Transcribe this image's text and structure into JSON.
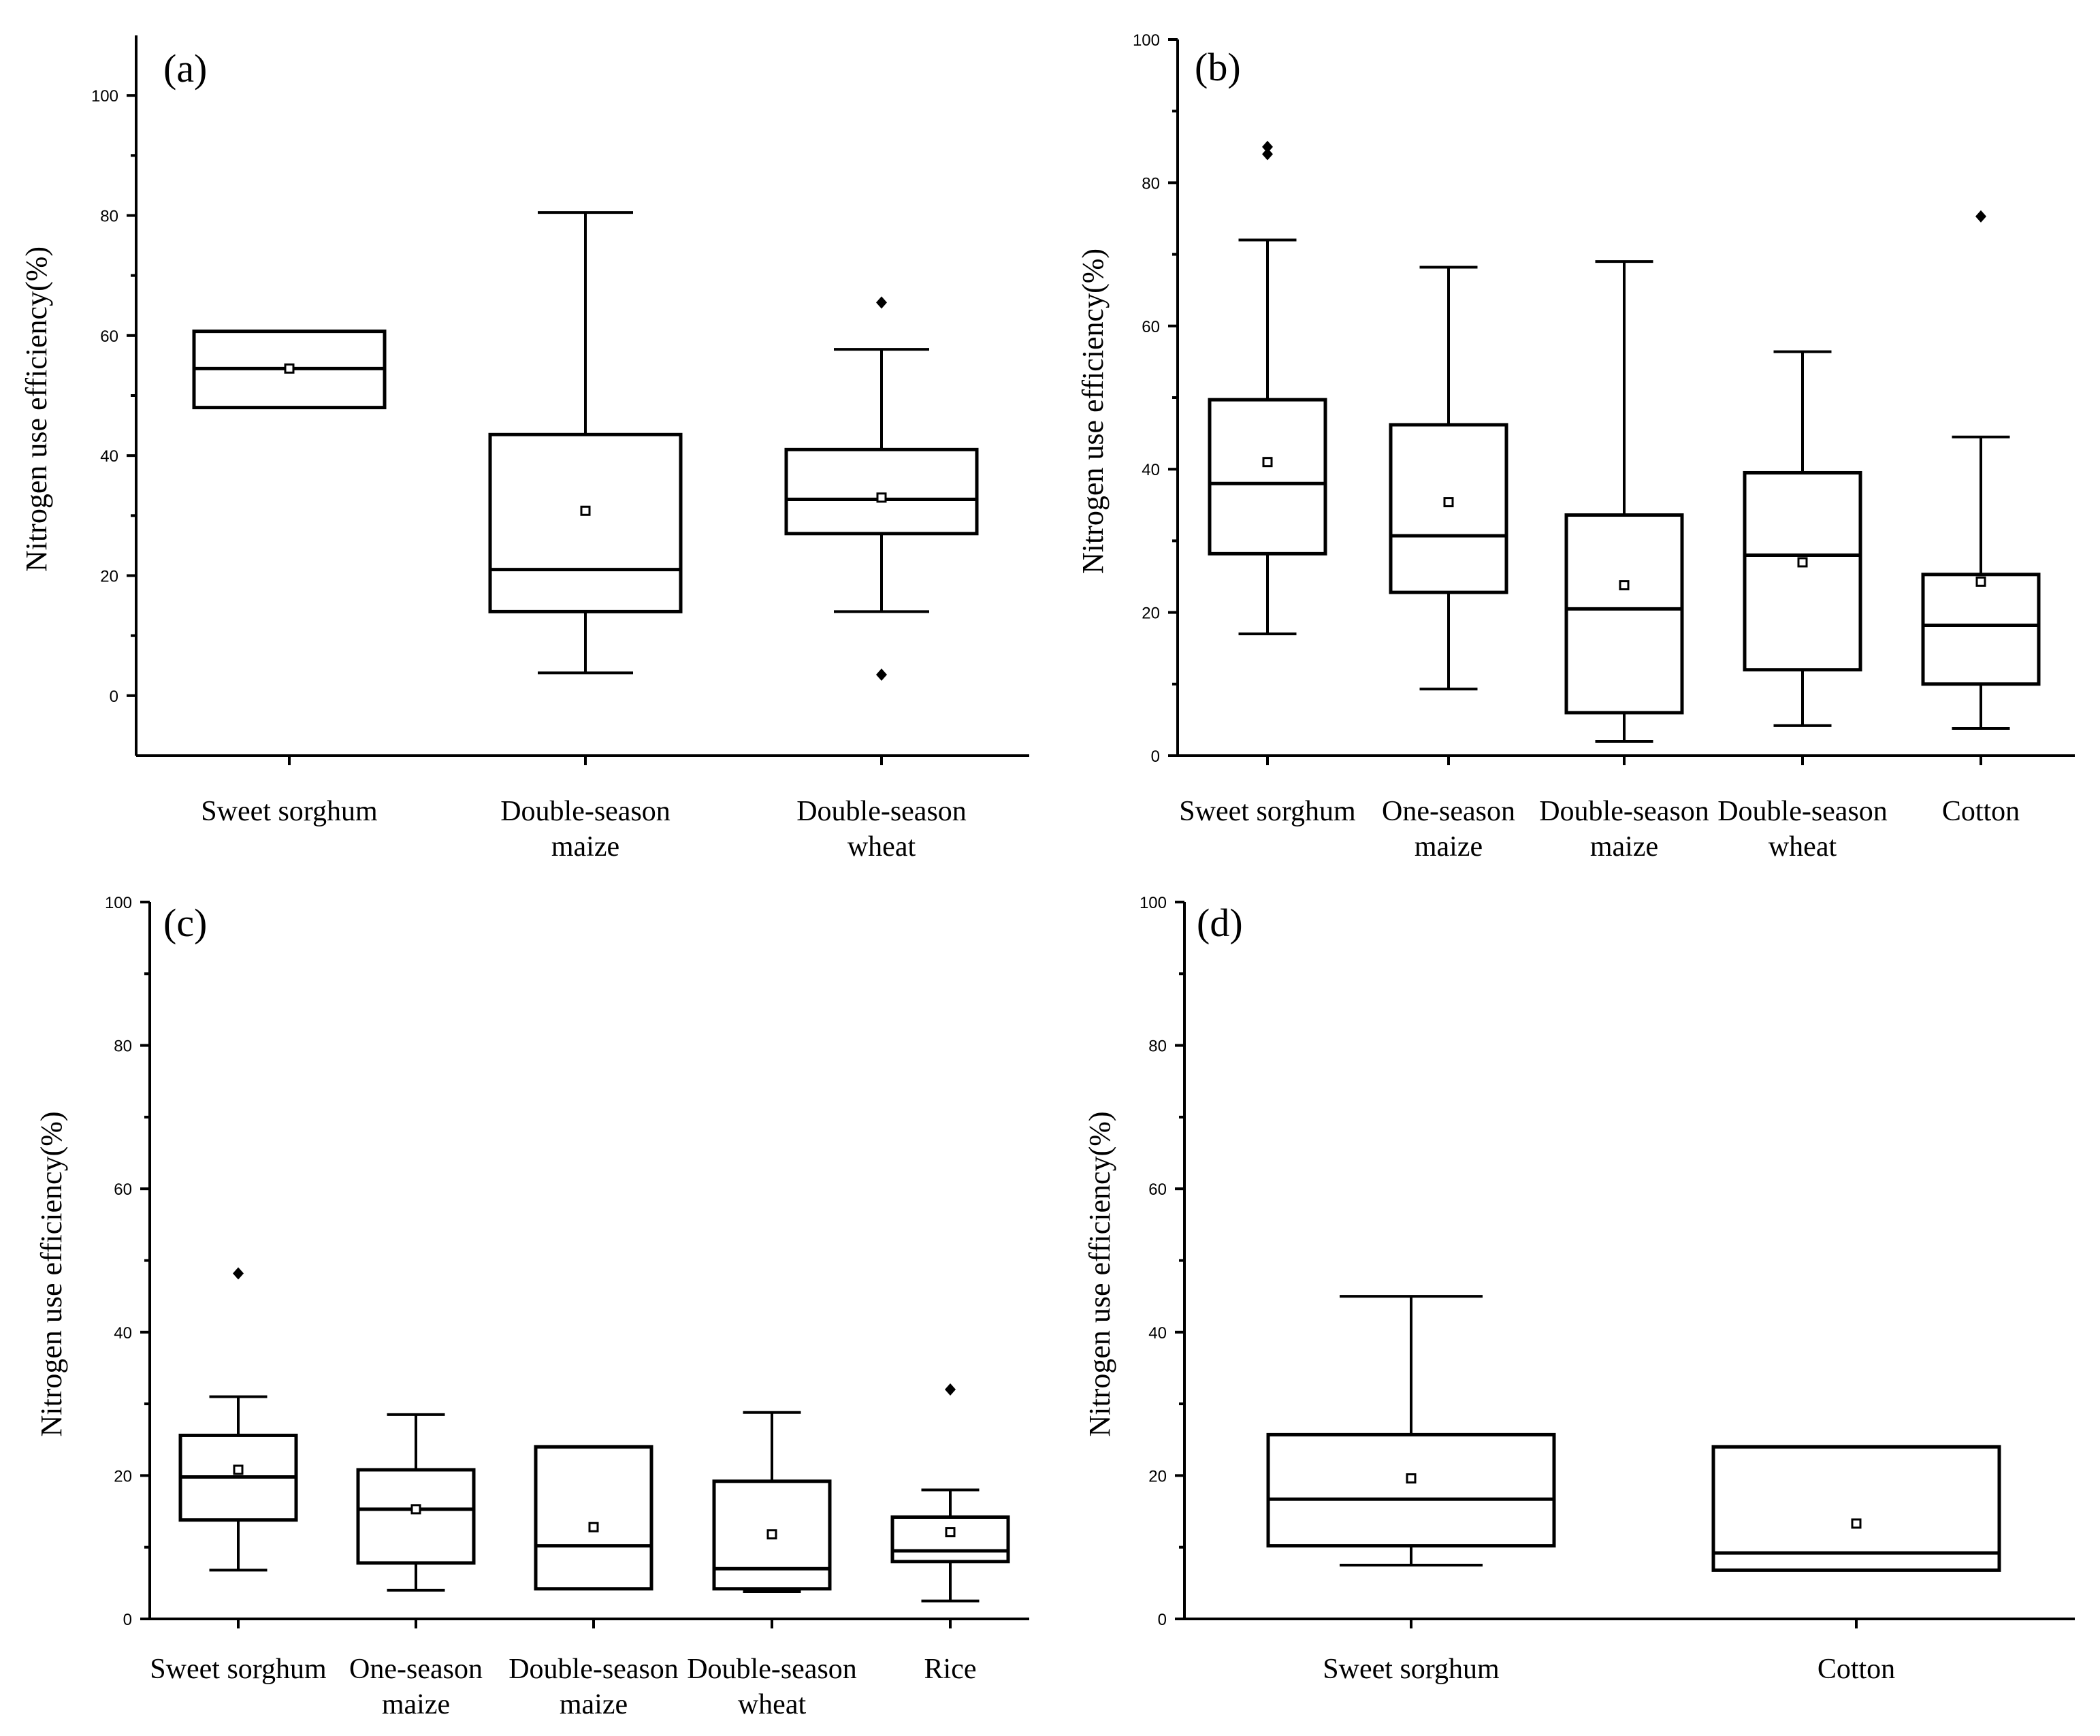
{
  "chart_data": [
    {
      "type": "box",
      "panel_label": "(a)",
      "ylabel": "Nitrogen use efficiency(%)",
      "ylim": [
        -10,
        110
      ],
      "yticks": [
        0,
        20,
        40,
        60,
        80,
        100
      ],
      "categories": [
        {
          "label": [
            "Sweet sorghum"
          ],
          "q1": 48,
          "median": 54.5,
          "q3": 60.7,
          "whisker_low": null,
          "whisker_high": null,
          "mean": 54.5,
          "outliers": []
        },
        {
          "label": [
            "Double-season",
            "maize"
          ],
          "q1": 14,
          "median": 21,
          "q3": 43.5,
          "whisker_low": 3.8,
          "whisker_high": 80.5,
          "mean": 30.8,
          "outliers": []
        },
        {
          "label": [
            "Double-season",
            "wheat"
          ],
          "q1": 27,
          "median": 32.7,
          "q3": 41,
          "whisker_low": 14,
          "whisker_high": 57.7,
          "mean": 33,
          "outliers": [
            65.5,
            3.5
          ]
        }
      ]
    },
    {
      "type": "box",
      "panel_label": "(b)",
      "ylabel": "Nitrogen use efficiency(%)",
      "ylim": [
        0,
        100
      ],
      "yticks": [
        0,
        20,
        40,
        60,
        80,
        100
      ],
      "categories": [
        {
          "label": [
            "Sweet sorghum"
          ],
          "q1": 28.2,
          "median": 38,
          "q3": 49.7,
          "whisker_low": 17,
          "whisker_high": 72,
          "mean": 41,
          "outliers": [
            85,
            84
          ]
        },
        {
          "label": [
            "One-season",
            "maize"
          ],
          "q1": 22.8,
          "median": 30.7,
          "q3": 46.2,
          "whisker_low": 9.3,
          "whisker_high": 68.2,
          "mean": 35.4,
          "outliers": []
        },
        {
          "label": [
            "Double-season",
            "maize"
          ],
          "q1": 6,
          "median": 20.5,
          "q3": 33.6,
          "whisker_low": 2,
          "whisker_high": 69,
          "mean": 23.8,
          "outliers": []
        },
        {
          "label": [
            "Double-season",
            "wheat"
          ],
          "q1": 12,
          "median": 28,
          "q3": 39.5,
          "whisker_low": 4.2,
          "whisker_high": 56.4,
          "mean": 27,
          "outliers": []
        },
        {
          "label": [
            "Cotton"
          ],
          "q1": 10,
          "median": 18.2,
          "q3": 25.3,
          "whisker_low": 3.8,
          "whisker_high": 44.5,
          "mean": 24.3,
          "outliers": [
            75.3
          ]
        }
      ]
    },
    {
      "type": "box",
      "panel_label": "(c)",
      "ylabel": "Nitrogen use efficiency(%)",
      "ylim": [
        0,
        100
      ],
      "yticks": [
        0,
        20,
        40,
        60,
        80,
        100
      ],
      "categories": [
        {
          "label": [
            "Sweet sorghum"
          ],
          "q1": 13.8,
          "median": 19.8,
          "q3": 25.6,
          "whisker_low": 6.8,
          "whisker_high": 31,
          "mean": 20.8,
          "outliers": [
            48.2
          ]
        },
        {
          "label": [
            "One-season",
            "maize"
          ],
          "q1": 7.8,
          "median": 15.3,
          "q3": 20.8,
          "whisker_low": 4,
          "whisker_high": 28.5,
          "mean": 15.3,
          "outliers": []
        },
        {
          "label": [
            "Double-season",
            "maize"
          ],
          "q1": 4.2,
          "median": 10.2,
          "q3": 24,
          "whisker_low": null,
          "whisker_high": null,
          "mean": 12.8,
          "outliers": []
        },
        {
          "label": [
            "Double-season",
            "wheat"
          ],
          "q1": 4.2,
          "median": 7,
          "q3": 19.2,
          "whisker_low": 3.8,
          "whisker_high": 28.8,
          "mean": 11.8,
          "outliers": []
        },
        {
          "label": [
            "Rice"
          ],
          "q1": 8,
          "median": 9.5,
          "q3": 14.2,
          "whisker_low": 2.5,
          "whisker_high": 18,
          "mean": 12.1,
          "outliers": [
            32
          ]
        }
      ]
    },
    {
      "type": "box",
      "panel_label": "(d)",
      "ylabel": "Nitrogen use efficiency(%)",
      "ylim": [
        0,
        100
      ],
      "yticks": [
        0,
        20,
        40,
        60,
        80,
        100
      ],
      "categories": [
        {
          "label": [
            "Sweet sorghum"
          ],
          "q1": 10.2,
          "median": 16.7,
          "q3": 25.7,
          "whisker_low": 7.5,
          "whisker_high": 45,
          "mean": 19.6,
          "outliers": []
        },
        {
          "label": [
            "Cotton"
          ],
          "q1": 6.8,
          "median": 9.2,
          "q3": 24,
          "whisker_low": null,
          "whisker_high": null,
          "mean": 13.3,
          "outliers": []
        }
      ]
    }
  ]
}
